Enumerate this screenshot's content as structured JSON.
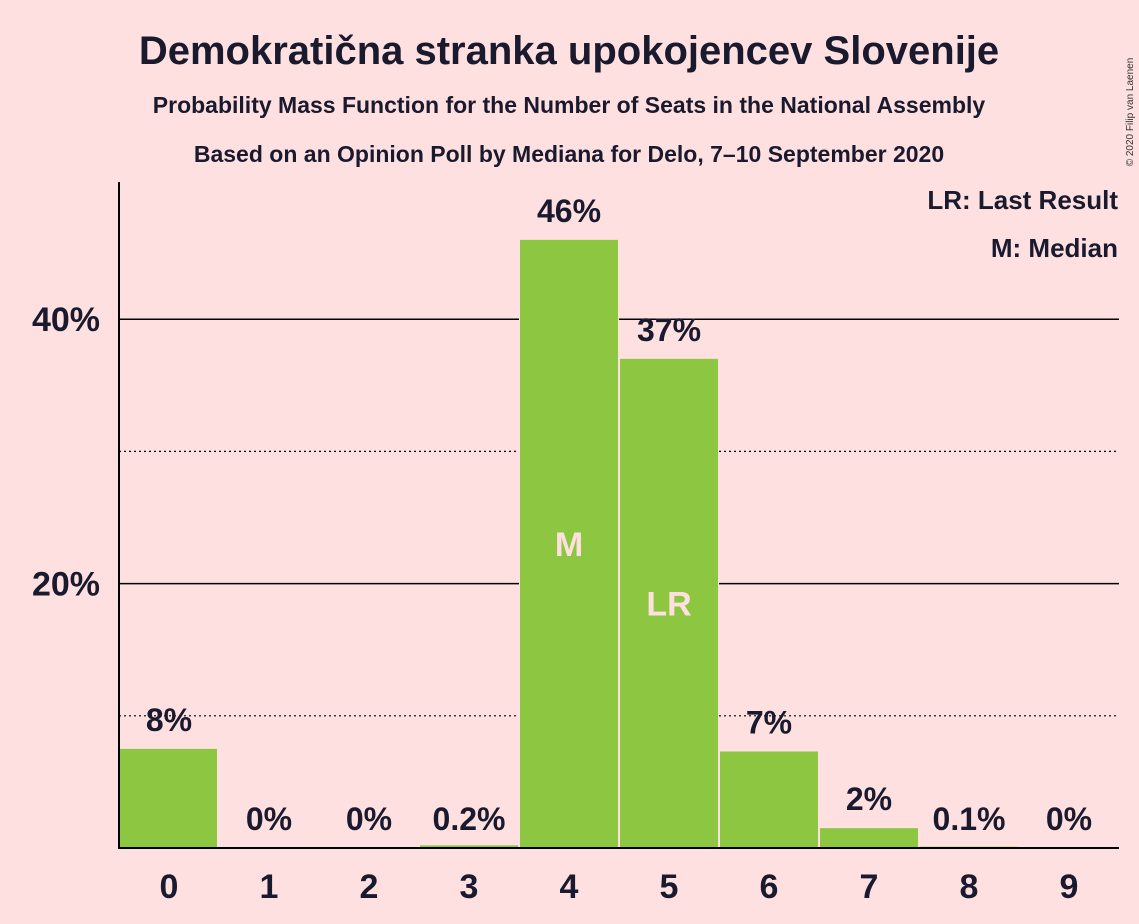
{
  "title": "Demokratična stranka upokojencev Slovenije",
  "subtitle1": "Probability Mass Function for the Number of Seats in the National Assembly",
  "subtitle2": "Based on an Opinion Poll by Mediana for Delo, 7–10 September 2020",
  "copyright": "© 2020 Filip van Laenen",
  "legend": {
    "last_result": "LR: Last Result",
    "median": "M: Median"
  },
  "colors": {
    "background": "#ffe0e0",
    "bar": "#8dc641",
    "text": "#1a1a2e"
  },
  "chart_data": {
    "type": "bar",
    "categories": [
      "0",
      "1",
      "2",
      "3",
      "4",
      "5",
      "6",
      "7",
      "8",
      "9"
    ],
    "values": [
      7.5,
      0,
      0,
      0.2,
      46,
      37,
      7.3,
      1.5,
      0.1,
      0
    ],
    "data_labels": [
      "8%",
      "0%",
      "0%",
      "0.2%",
      "46%",
      "37%",
      "7%",
      "2%",
      "0.1%",
      "0%"
    ],
    "ylim": [
      0,
      50
    ],
    "yticks": [
      {
        "value": 20,
        "label": "20%"
      },
      {
        "value": 40,
        "label": "40%"
      }
    ],
    "minor_gridlines": [
      10,
      30
    ],
    "median_index": 4,
    "median_marker": "M",
    "last_result_index": 5,
    "last_result_marker": "LR",
    "xlabel": "",
    "ylabel": ""
  }
}
